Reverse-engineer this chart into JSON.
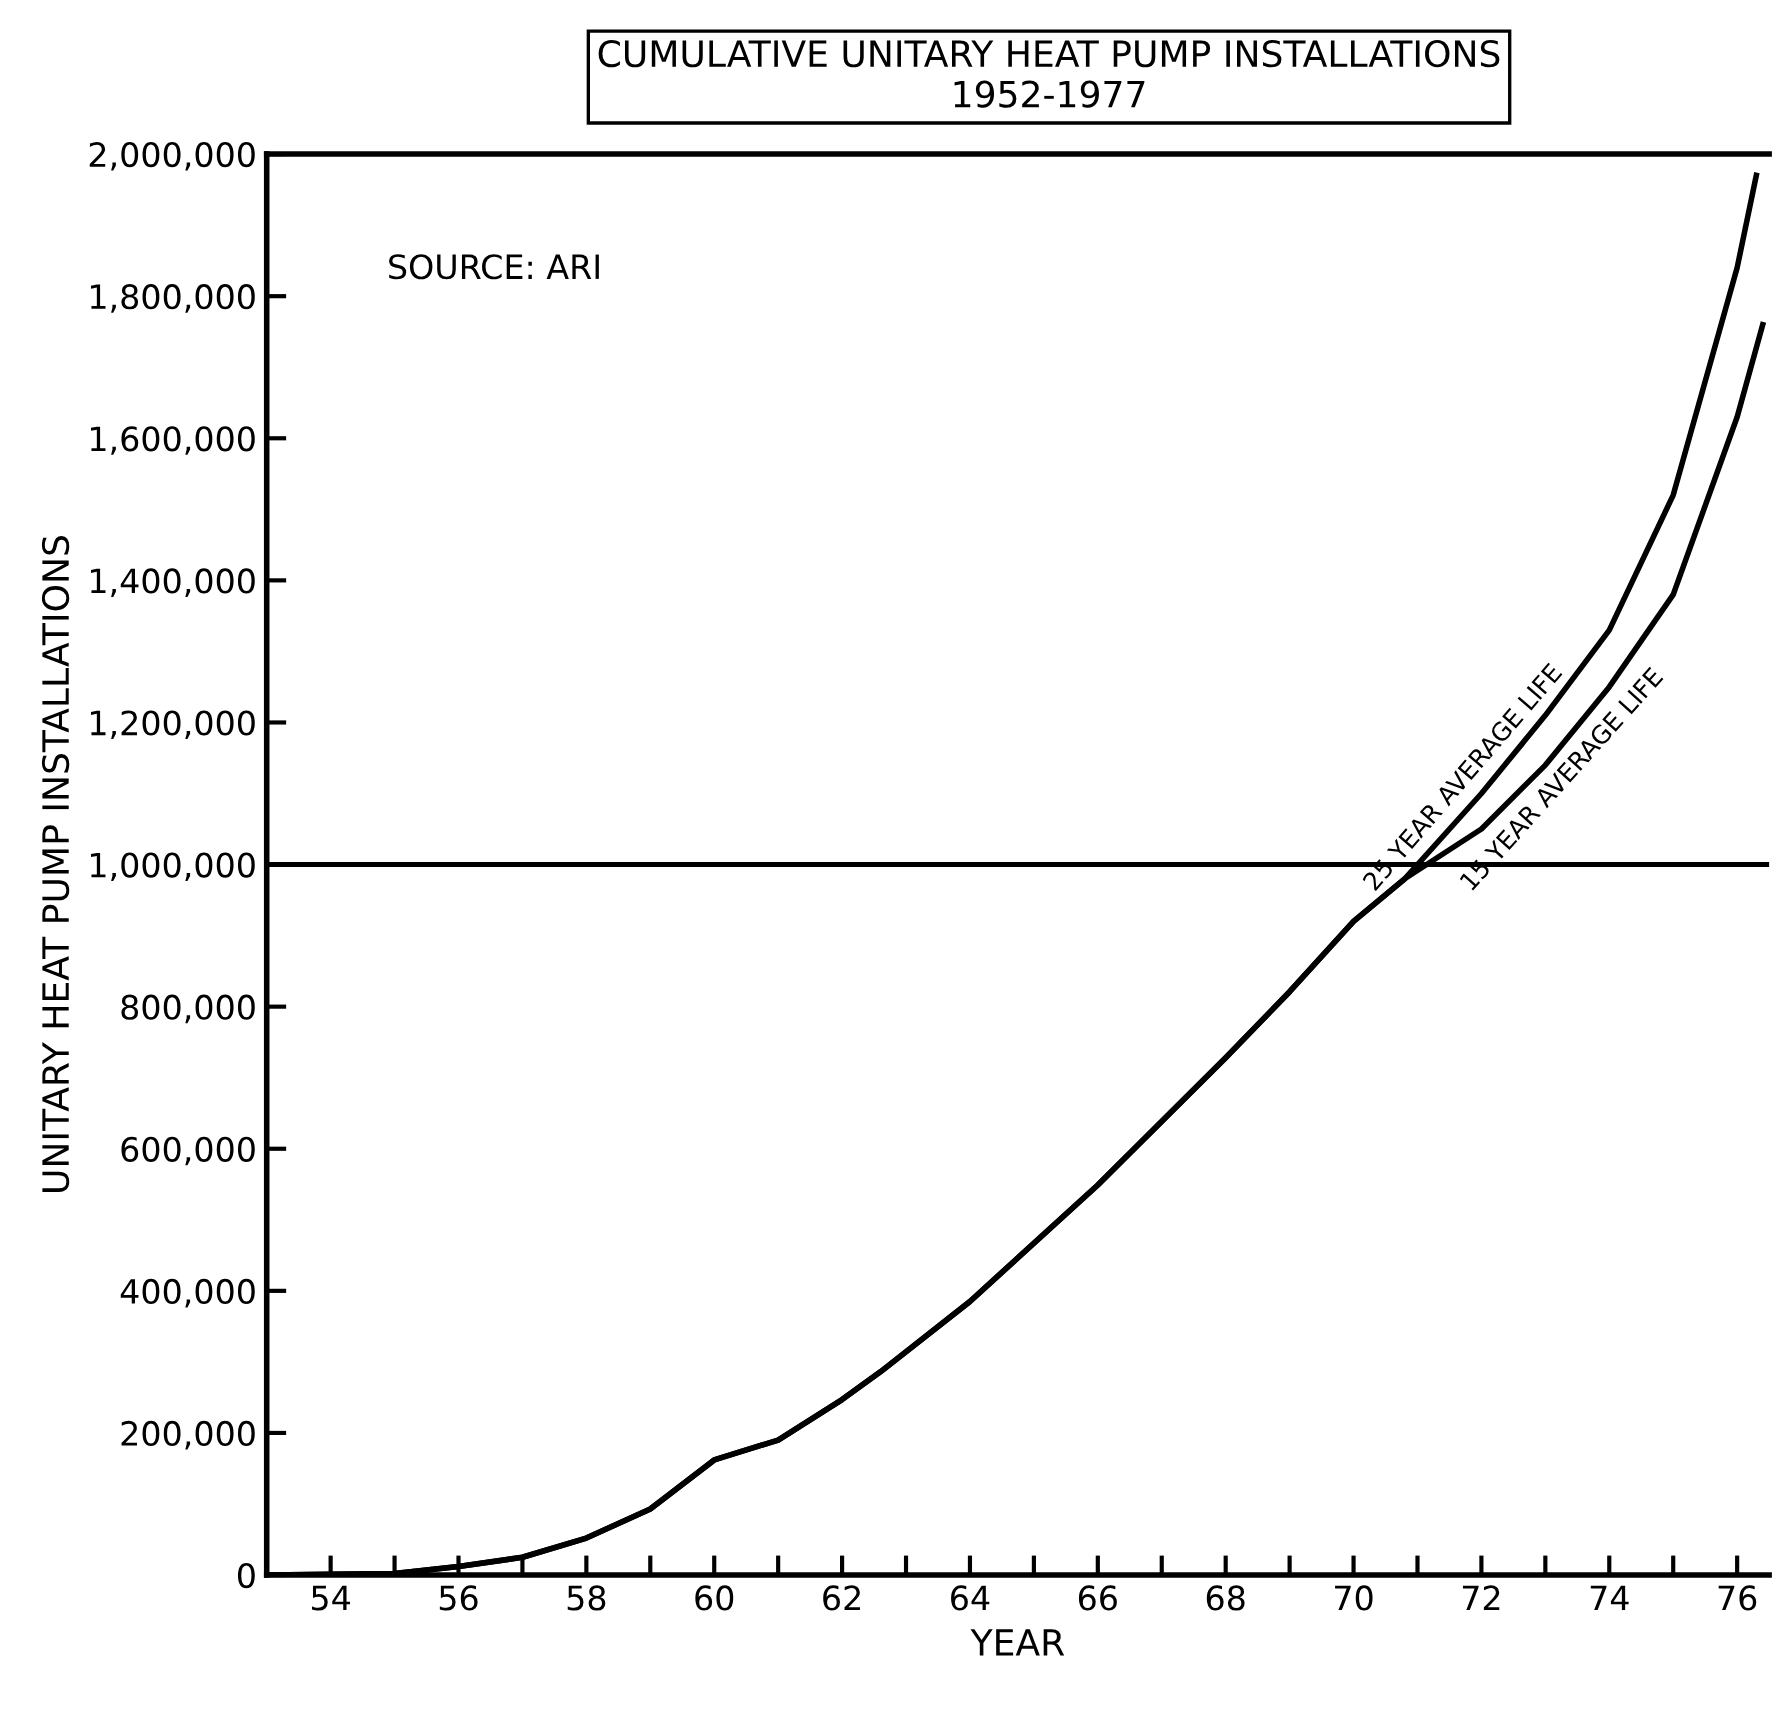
{
  "chart_data": {
    "type": "line",
    "title": "CUMULATIVE UNITARY HEAT PUMP INSTALLATIONS",
    "subtitle": "1952-1977",
    "xlabel": "YEAR",
    "ylabel": "UNITARY HEAT PUMP INSTALLATIONS",
    "annotations": [
      "SOURCE: ARI"
    ],
    "series": [
      {
        "name": "25 YEAR AVERAGE LIFE",
        "color": "#000000",
        "x": [
          53,
          55,
          56,
          57,
          58,
          59,
          60,
          61,
          62,
          62.6,
          64,
          66,
          68,
          69,
          70,
          70.8,
          72,
          73,
          74,
          75,
          76,
          76.3
        ],
        "values": [
          0,
          2000,
          12000,
          25000,
          52000,
          93000,
          162000,
          190000,
          247000,
          286000,
          385000,
          549000,
          728000,
          821000,
          920000,
          980000,
          1100000,
          1210000,
          1330000,
          1520000,
          1840000,
          1970000
        ]
      },
      {
        "name": "15 YEAR AVERAGE LIFE",
        "color": "#000000",
        "x": [
          53,
          55,
          56,
          57,
          58,
          59,
          60,
          61,
          62,
          62.6,
          64,
          66,
          68,
          69,
          70,
          70.8,
          72,
          73,
          74,
          75,
          76,
          76.4
        ],
        "values": [
          0,
          2000,
          12000,
          25000,
          52000,
          93000,
          162000,
          190000,
          247000,
          286000,
          385000,
          549000,
          728000,
          821000,
          920000,
          980000,
          1050000,
          1140000,
          1250000,
          1380000,
          1630000,
          1760000
        ]
      }
    ],
    "ref_lines": [
      {
        "axis": "y",
        "value": 1000000,
        "color": "#000000"
      }
    ],
    "xlim": [
      53,
      76.5
    ],
    "ylim": [
      0,
      2000000
    ],
    "xticks": [
      {
        "value": 53,
        "label": null
      },
      54,
      {
        "value": 55,
        "label": null
      },
      56,
      {
        "value": 57,
        "label": null
      },
      58,
      {
        "value": 59,
        "label": null
      },
      60,
      {
        "value": 61,
        "label": null
      },
      62,
      {
        "value": 63,
        "label": null
      },
      64,
      {
        "value": 65,
        "label": null
      },
      66,
      {
        "value": 67,
        "label": null
      },
      68,
      {
        "value": 69,
        "label": null
      },
      70,
      {
        "value": 71,
        "label": null
      },
      72,
      {
        "value": 73,
        "label": null
      },
      74,
      {
        "value": 75,
        "label": null
      },
      76
    ],
    "yticks": [
      0,
      {
        "value": 200000,
        "label": "200,000"
      },
      {
        "value": 400000,
        "label": "400,000"
      },
      {
        "value": 600000,
        "label": "600,000"
      },
      {
        "value": 800000,
        "label": "800,000"
      },
      {
        "value": 1000000,
        "label": "1,000,000"
      },
      {
        "value": 1200000,
        "label": "1,200,000"
      },
      {
        "value": 1400000,
        "label": "1,400,000"
      },
      {
        "value": 1600000,
        "label": "1,600,000"
      },
      {
        "value": 1800000,
        "label": "1,800,000"
      },
      {
        "value": 2000000,
        "label": "2,000,000"
      }
    ],
    "grid": false,
    "legend": false,
    "marker": "none",
    "line_style": "solid"
  }
}
